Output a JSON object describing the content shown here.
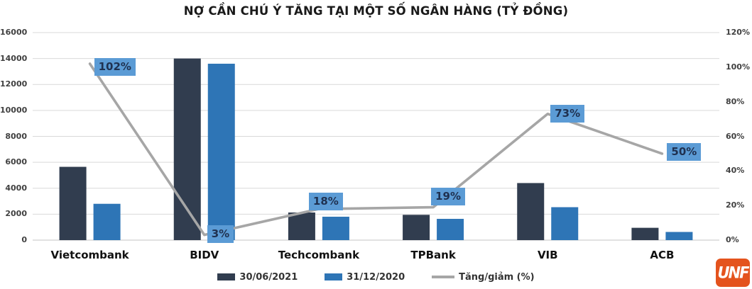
{
  "chart_data": {
    "type": "combo-bar-line",
    "title": "NỢ CẦN CHÚ Ý TĂNG TẠI MỘT SỐ NGÂN HÀNG (TỶ ĐỒNG)",
    "categories": [
      "Vietcombank",
      "BIDV",
      "Techcombank",
      "TPBank",
      "VIB",
      "ACB"
    ],
    "series": [
      {
        "name": "30/06/2021",
        "type": "bar",
        "axis": "left",
        "color": "#313D4F",
        "values": [
          5650,
          14000,
          2130,
          1950,
          4400,
          950
        ]
      },
      {
        "name": "31/12/2020",
        "type": "bar",
        "axis": "left",
        "color": "#2E75B6",
        "values": [
          2800,
          13600,
          1805,
          1640,
          2540,
          630
        ]
      },
      {
        "name": "Tăng/giảm (%)",
        "type": "line",
        "axis": "right",
        "color": "#A6A6A6",
        "values": [
          102,
          3,
          18,
          19,
          73,
          50
        ],
        "point_labels": [
          "102%",
          "3%",
          "18%",
          "19%",
          "73%",
          "50%"
        ]
      }
    ],
    "left_axis": {
      "min": 0,
      "max": 16000,
      "step": 2000,
      "tick_labels": [
        "0",
        "2000",
        "4000",
        "6000",
        "8000",
        "10000",
        "12000",
        "14000",
        "16000"
      ]
    },
    "right_axis": {
      "min": 0,
      "max": 120,
      "step": 20,
      "tick_labels": [
        "0%",
        "20%",
        "40%",
        "60%",
        "80%",
        "100%",
        "120%"
      ]
    },
    "grid": true,
    "gridline_color": "#D9D9D9",
    "legend_position": "bottom",
    "point_label_style": {
      "bg": "#5B9BD5",
      "text_color": "#1F3150"
    }
  },
  "logo": {
    "text": "UNF",
    "bg_color": "#E4531D"
  }
}
